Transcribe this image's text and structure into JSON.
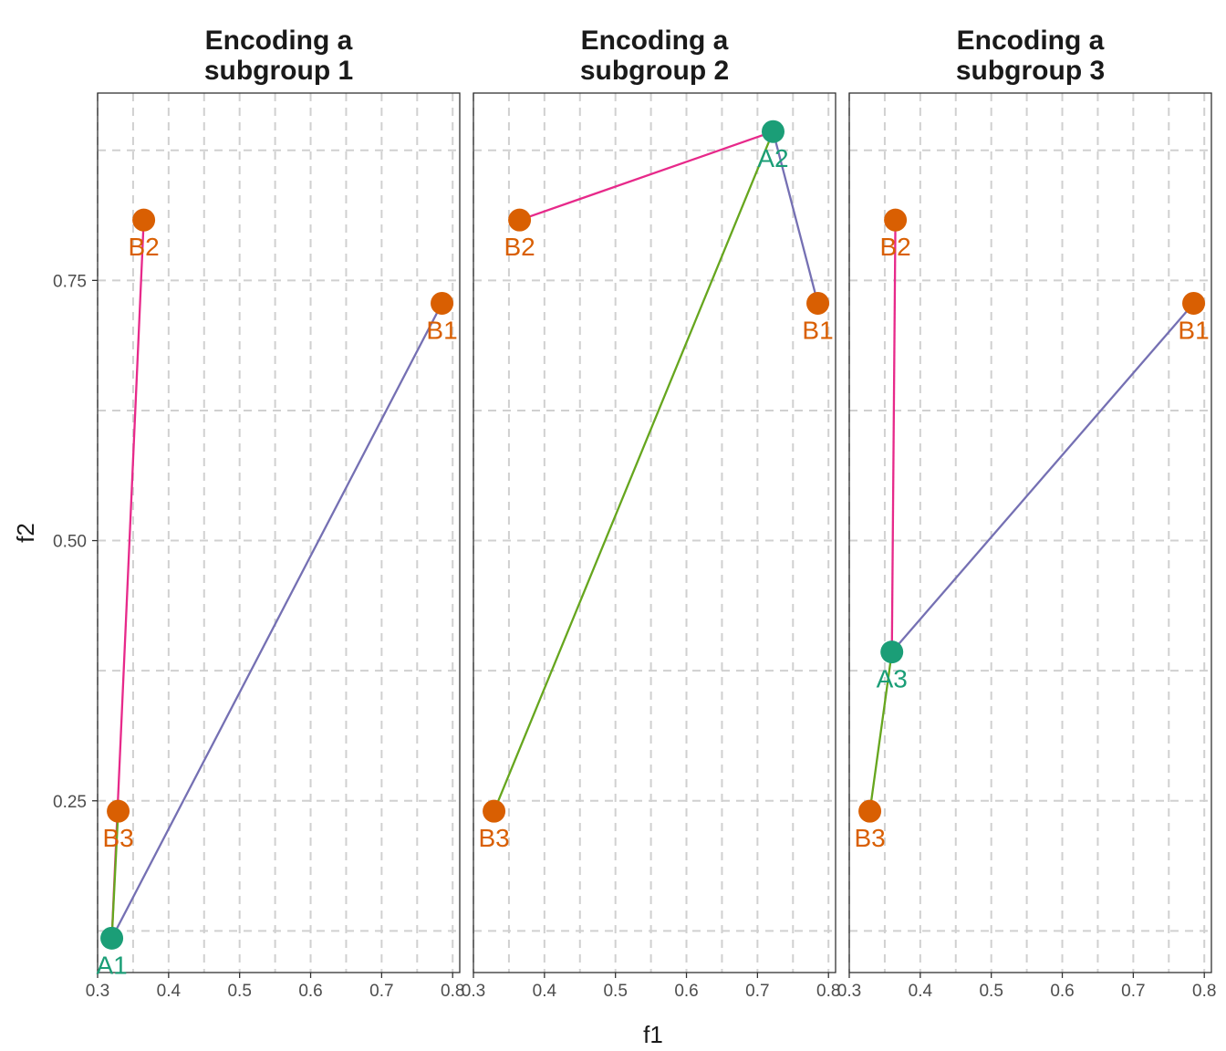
{
  "chart_data": {
    "type": "scatter",
    "xlabel": "f1",
    "ylabel": "f2",
    "xlim": [
      0.3,
      0.81
    ],
    "ylim": [
      0.085,
      0.93
    ],
    "x_ticks": [
      0.3,
      0.4,
      0.5,
      0.6,
      0.7,
      0.8
    ],
    "x_tick_labels": [
      "0.3",
      "0.4",
      "0.5",
      "0.6",
      "0.7",
      "0.8"
    ],
    "y_ticks": [
      0.25,
      0.5,
      0.75
    ],
    "y_tick_labels": [
      "0.25",
      "0.50",
      "0.75"
    ],
    "grid": true,
    "colors": {
      "a_point": "#1b9e77",
      "b_point": "#d95f02",
      "link_b1": "#7570b3",
      "link_b2": "#e7298a",
      "link_b3": "#66a61e"
    },
    "b_points": [
      {
        "label": "B1",
        "x": 0.785,
        "y": 0.728
      },
      {
        "label": "B2",
        "x": 0.365,
        "y": 0.808
      },
      {
        "label": "B3",
        "x": 0.329,
        "y": 0.24
      }
    ],
    "panels": [
      {
        "title_line1": "Encoding a",
        "title_line2": "subgroup 1",
        "a_point": {
          "label": "A1",
          "x": 0.32,
          "y": 0.118
        }
      },
      {
        "title_line1": "Encoding a",
        "title_line2": "subgroup 2",
        "a_point": {
          "label": "A2",
          "x": 0.722,
          "y": 0.893
        }
      },
      {
        "title_line1": "Encoding a",
        "title_line2": "subgroup 3",
        "a_point": {
          "label": "A3",
          "x": 0.36,
          "y": 0.393
        }
      }
    ]
  }
}
